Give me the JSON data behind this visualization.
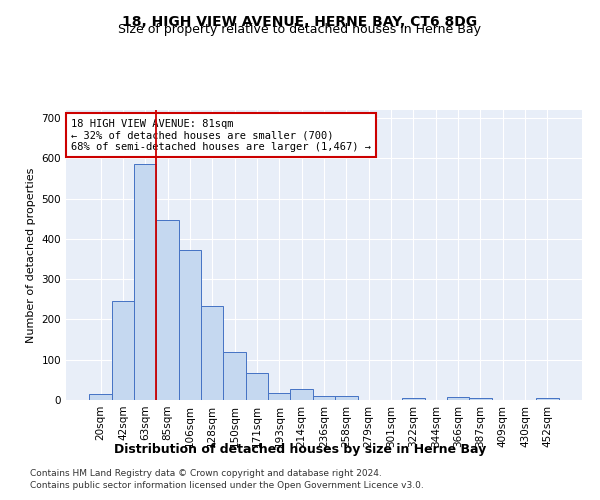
{
  "title1": "18, HIGH VIEW AVENUE, HERNE BAY, CT6 8DG",
  "title2": "Size of property relative to detached houses in Herne Bay",
  "xlabel": "Distribution of detached houses by size in Herne Bay",
  "ylabel": "Number of detached properties",
  "categories": [
    "20sqm",
    "42sqm",
    "63sqm",
    "85sqm",
    "106sqm",
    "128sqm",
    "150sqm",
    "171sqm",
    "193sqm",
    "214sqm",
    "236sqm",
    "258sqm",
    "279sqm",
    "301sqm",
    "322sqm",
    "344sqm",
    "366sqm",
    "387sqm",
    "409sqm",
    "430sqm",
    "452sqm"
  ],
  "values": [
    14,
    246,
    585,
    447,
    372,
    234,
    118,
    68,
    18,
    28,
    10,
    10,
    0,
    0,
    6,
    0,
    8,
    6,
    0,
    0,
    6
  ],
  "bar_color": "#c5d8f0",
  "bar_edge_color": "#4472c4",
  "vline_x": 2.5,
  "vline_color": "#cc0000",
  "annotation_text": "18 HIGH VIEW AVENUE: 81sqm\n← 32% of detached houses are smaller (700)\n68% of semi-detached houses are larger (1,467) →",
  "annotation_box_color": "#ffffff",
  "annotation_box_edge": "#cc0000",
  "ylim": [
    0,
    720
  ],
  "yticks": [
    0,
    100,
    200,
    300,
    400,
    500,
    600,
    700
  ],
  "footnote1": "Contains HM Land Registry data © Crown copyright and database right 2024.",
  "footnote2": "Contains public sector information licensed under the Open Government Licence v3.0.",
  "plot_background": "#e8eef8",
  "grid_color": "#ffffff",
  "title1_fontsize": 10,
  "title2_fontsize": 9,
  "xlabel_fontsize": 9,
  "ylabel_fontsize": 8,
  "tick_fontsize": 7.5,
  "annotation_fontsize": 7.5,
  "footnote_fontsize": 6.5
}
